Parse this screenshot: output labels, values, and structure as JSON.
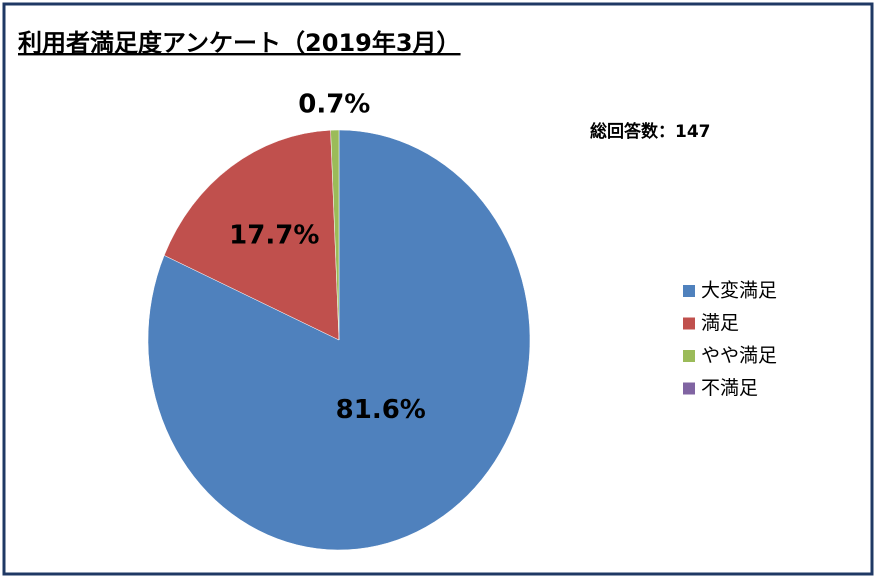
{
  "chart_data": {
    "type": "pie",
    "title": "利用者満足度アンケート（2019年3月）",
    "annotation": "総回答数：147",
    "categories": [
      "大変満足",
      "満足",
      "やや満足",
      "不満足"
    ],
    "values": [
      81.6,
      17.7,
      0.7,
      0
    ],
    "value_labels": [
      "81.6%",
      "17.7%",
      "0.7%",
      null
    ],
    "colors": [
      "#4f81bd",
      "#c0504d",
      "#9bbb59",
      "#8064a2"
    ],
    "legend": "right"
  }
}
